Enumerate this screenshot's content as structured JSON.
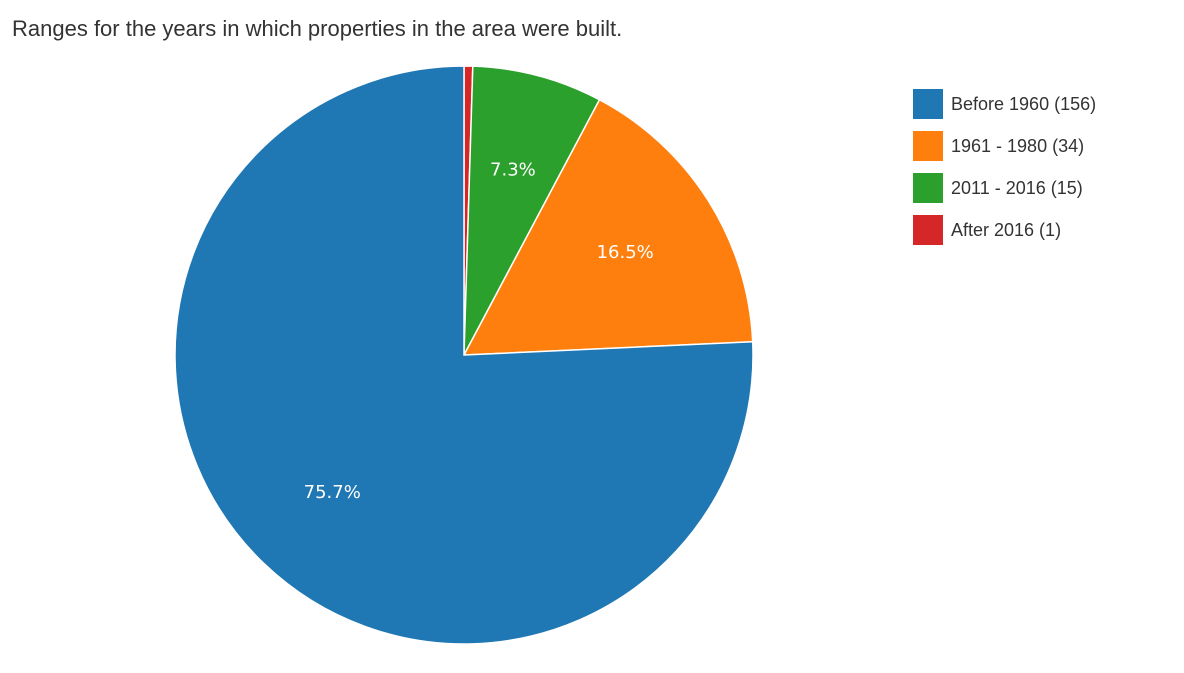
{
  "chart_data": {
    "type": "pie",
    "title": "Ranges for the years in which properties in the area were built.",
    "legend_position": "right",
    "slices": [
      {
        "label": "Before 1960 (156)",
        "value": 156,
        "percent_label": "75.7%",
        "color": "#1f77b4"
      },
      {
        "label": "1961 - 1980 (34)",
        "value": 34,
        "percent_label": "16.5%",
        "color": "#ff7f0e"
      },
      {
        "label": "2011 - 2016 (15)",
        "value": 15,
        "percent_label": "7.3%",
        "color": "#2ca02c"
      },
      {
        "label": "After 2016 (1)",
        "value": 1,
        "percent_label": "",
        "color": "#d62728"
      }
    ]
  }
}
